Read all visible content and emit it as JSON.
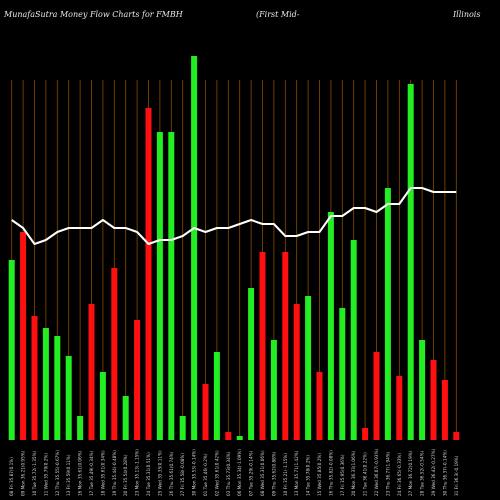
{
  "title": {
    "left": "MunafaSutra  Money Flow  Charts for FMBH",
    "middle": "(First Mid-",
    "right": "Illinois"
  },
  "colors": {
    "up": "#22ee22",
    "down": "#ff1010",
    "line": "#ffffff",
    "grid": "#8a4a00",
    "background": "#000000"
  },
  "chart_data": {
    "type": "bar",
    "title": "MunafaSutra  Money Flow  Charts for FMBH (First Mid- Illinois",
    "ylim": [
      0,
      100
    ],
    "grid": "vertical",
    "categories": [
      "08 Fri 35.87(0.1%)",
      "09 Mon 36.21(0.95%)",
      "10 Tue 35.72(-1.35%)",
      "11 Wed 35.79(0.2%)",
      "12 Thu 35.55(-0.67%)",
      "13 Fri 35.59(0.11%)",
      "16 Mon 35.61(0.06%)",
      "17 Tue 35.49(-0.34%)",
      "18 Wed 35.61(0.34%)",
      "19 Thu 35.44(-0.48%)",
      "20 Fri 35.54(0.28%)",
      "23 Mon 35.13(-1.15%)",
      "24 Tue 35.31(0.51%)",
      "25 Wed 35.35(0.11%)",
      "26 Thu 35.61(0.74%)",
      "27 Fri 35.58(-0.08%)",
      "30 Mon 35.53(-0.14%)",
      "01 Tue 35.46(-0.2%)",
      "02 Wed 35.61(0.42%)",
      "03 Thu 35.73(0.34%)",
      "06 Mon 35.34(-1.09%)",
      "07 Tue 35.29(-0.14%)",
      "08 Wed 35.31(0.06%)",
      "09 Thu 35.62(0.88%)",
      "10 Fri 35.21(-1.15%)",
      "13 Mon 35.71(1.42%)",
      "14 Tue 35.78(0.2%)",
      "15 Wed 35.85(0.2%)",
      "16 Thu 35.82(-0.08%)",
      "17 Fri 35.95(0.36%)",
      "20 Mon 36.33(1.06%)",
      "21 Tue 36.41(0.22%)",
      "22 Wed 36.07(-0.93%)",
      "23 Thu 36.77(1.94%)",
      "24 Fri 36.65(-0.33%)",
      "27 Mon 36.72(0.19%)",
      "28 Tue 36.52(-0.54%)",
      "29 Wed 36.42(-0.27%)",
      "30 Thu 36.37(-0.14%)",
      "31 Fri 36.3(-0.19%)"
    ],
    "series": [
      {
        "values": [
          45,
          52,
          31,
          28,
          26,
          21,
          6,
          34,
          17,
          43,
          11,
          30,
          83,
          77,
          77,
          6,
          96,
          14,
          22,
          2,
          1,
          38,
          47,
          25,
          47,
          34,
          36,
          17,
          57,
          33,
          50,
          3,
          22,
          63,
          16,
          89,
          25,
          20,
          15,
          2
        ],
        "colors": [
          "up",
          "down",
          "down",
          "up",
          "up",
          "up",
          "up",
          "down",
          "up",
          "down",
          "up",
          "down",
          "down",
          "up",
          "up",
          "up",
          "up",
          "down",
          "up",
          "down",
          "up",
          "up",
          "down",
          "up",
          "down",
          "down",
          "up",
          "down",
          "up",
          "up",
          "up",
          "down",
          "down",
          "up",
          "down",
          "up",
          "up",
          "down",
          "down",
          "down"
        ]
      },
      {
        "values": [
          55,
          53,
          49,
          50,
          52,
          53,
          53,
          53,
          55,
          53,
          53,
          52,
          49,
          50,
          50,
          51,
          53,
          52,
          53,
          53,
          54,
          55,
          54,
          54,
          51,
          51,
          52,
          52,
          56,
          56,
          58,
          58,
          57,
          59,
          59,
          63,
          63,
          62,
          62,
          62
        ]
      }
    ]
  }
}
